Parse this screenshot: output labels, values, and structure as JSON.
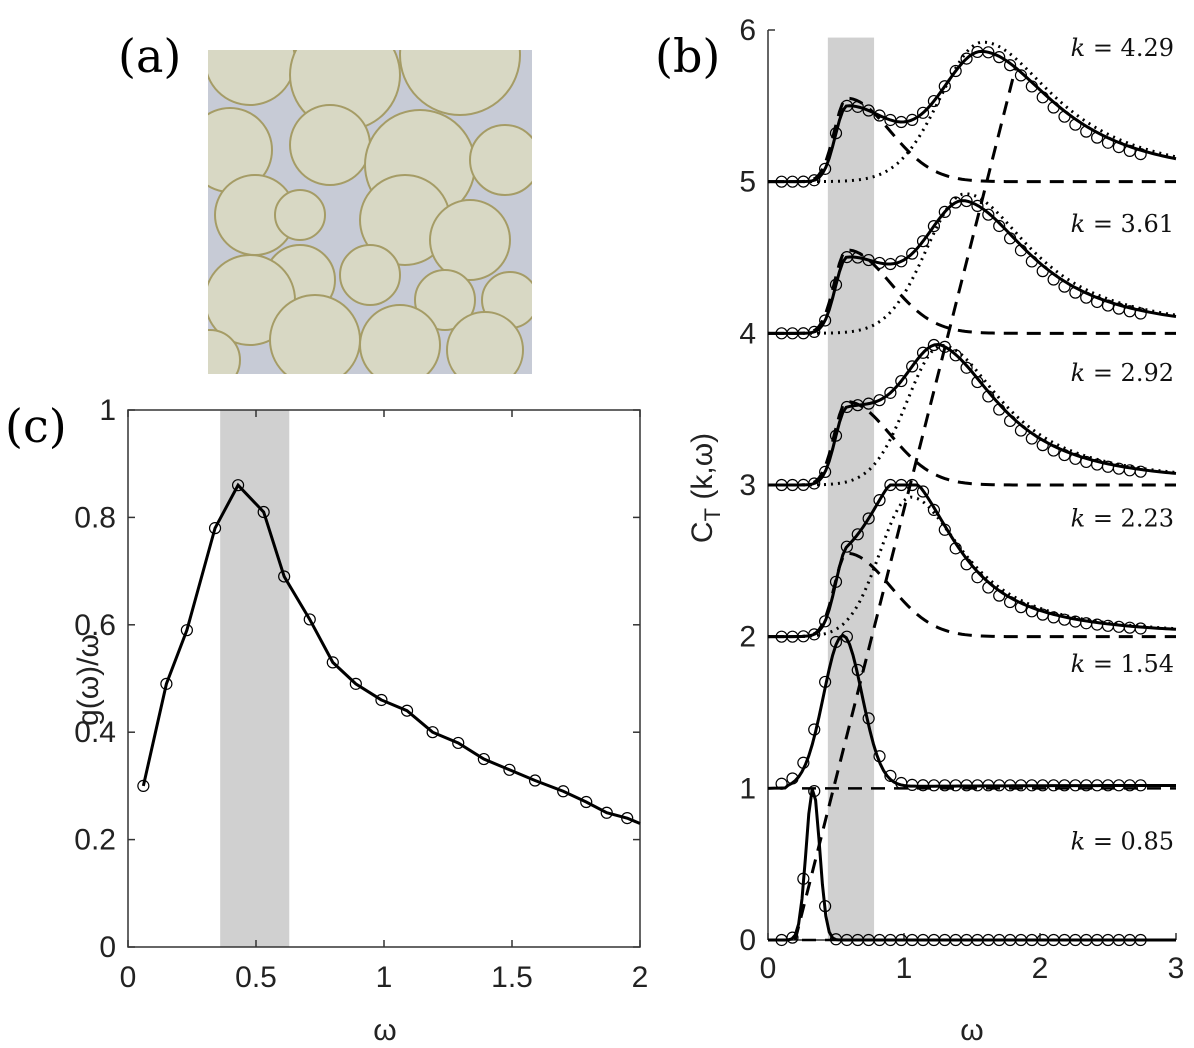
{
  "panels": {
    "a": {
      "label": "(a)"
    },
    "b": {
      "label": "(b)"
    },
    "c": {
      "label": "(c)"
    }
  },
  "colors": {
    "band": "#d0d0d0",
    "line": "#000000",
    "image_bg": "#c7cbd6",
    "droplet_fill": "#d8d8c4",
    "droplet_edge": "#a59c66"
  },
  "chart_data": [
    {
      "id": "c",
      "type": "line",
      "title": "",
      "xlabel": "ω",
      "ylabel": "g(ω)/ω",
      "xlim": [
        0,
        2
      ],
      "ylim": [
        0,
        1
      ],
      "xticks": [
        0,
        0.5,
        1,
        1.5,
        2
      ],
      "xtick_labels": [
        "0",
        "0.5",
        "1",
        "1.5",
        "2"
      ],
      "yticks": [
        0,
        0.2,
        0.4,
        0.6,
        0.8,
        1
      ],
      "ytick_labels": [
        "0",
        "0.2",
        "0.4",
        "0.6",
        "0.8",
        "1"
      ],
      "shaded_band": [
        0.36,
        0.63
      ],
      "series": [
        {
          "name": "g(ω)/ω",
          "x": [
            0.06,
            0.15,
            0.23,
            0.34,
            0.43,
            0.53,
            0.61,
            0.71,
            0.8,
            0.89,
            0.99,
            1.09,
            1.19,
            1.29,
            1.39,
            1.49,
            1.59,
            1.7,
            1.79,
            1.87,
            1.95,
            2.0
          ],
          "y": [
            0.3,
            0.49,
            0.59,
            0.78,
            0.86,
            0.81,
            0.69,
            0.61,
            0.53,
            0.49,
            0.46,
            0.44,
            0.4,
            0.38,
            0.35,
            0.33,
            0.31,
            0.29,
            0.27,
            0.25,
            0.24,
            0.23
          ],
          "markers": [
            0.06,
            0.15,
            0.23,
            0.34,
            0.43,
            0.53,
            0.61,
            0.71,
            0.8,
            0.89,
            0.99,
            1.09,
            1.19,
            1.29,
            1.39,
            1.49,
            1.59,
            1.7,
            1.79,
            1.87,
            1.95
          ]
        }
      ]
    },
    {
      "id": "b",
      "type": "line",
      "title": "",
      "xlabel": "ω",
      "ylabel": "C_T (k,ω)",
      "xlim": [
        0,
        3
      ],
      "ylim": [
        0,
        6
      ],
      "xticks": [
        0,
        1,
        2,
        3
      ],
      "xtick_labels": [
        "0",
        "1",
        "2",
        "3"
      ],
      "yticks": [
        0,
        1,
        2,
        3,
        4,
        5,
        6
      ],
      "ytick_labels": [
        "0",
        "1",
        "2",
        "3",
        "4",
        "5",
        "6"
      ],
      "shaded_band": [
        0.44,
        0.78
      ],
      "dispersion_line": {
        "x": [
          0.2,
          1.82
        ],
        "y": [
          0,
          5.75
        ]
      },
      "curves": [
        {
          "k": "0.85",
          "k_label_y": 0.65,
          "offset": 0,
          "peak": 0.33,
          "amp": 1.0,
          "width": 0.07,
          "has_dotted": false,
          "data_x_max": 2.75
        },
        {
          "k": "1.54",
          "k_label_y": 1.82,
          "offset": 1,
          "peak": 0.55,
          "amp": 1.0,
          "width": 0.2,
          "has_dotted": false,
          "data_x_max": 2.75
        },
        {
          "k": "2.23",
          "k_label_y": 2.78,
          "offset": 2,
          "peak": 1.05,
          "amp": 1.0,
          "width": 0.4,
          "has_dotted": true,
          "data_x_max": 2.75
        },
        {
          "k": "2.92",
          "k_label_y": 3.74,
          "offset": 3,
          "peak": 1.28,
          "amp": 1.0,
          "width": 0.45,
          "has_dotted": true,
          "data_x_max": 2.75
        },
        {
          "k": "3.61",
          "k_label_y": 4.72,
          "offset": 4,
          "peak": 1.45,
          "amp": 1.0,
          "width": 0.5,
          "has_dotted": true,
          "data_x_max": 2.75
        },
        {
          "k": "4.29",
          "k_label_y": 5.88,
          "offset": 5,
          "peak": 1.58,
          "amp": 1.0,
          "width": 0.55,
          "has_dotted": true,
          "data_x_max": 2.75
        }
      ]
    }
  ]
}
